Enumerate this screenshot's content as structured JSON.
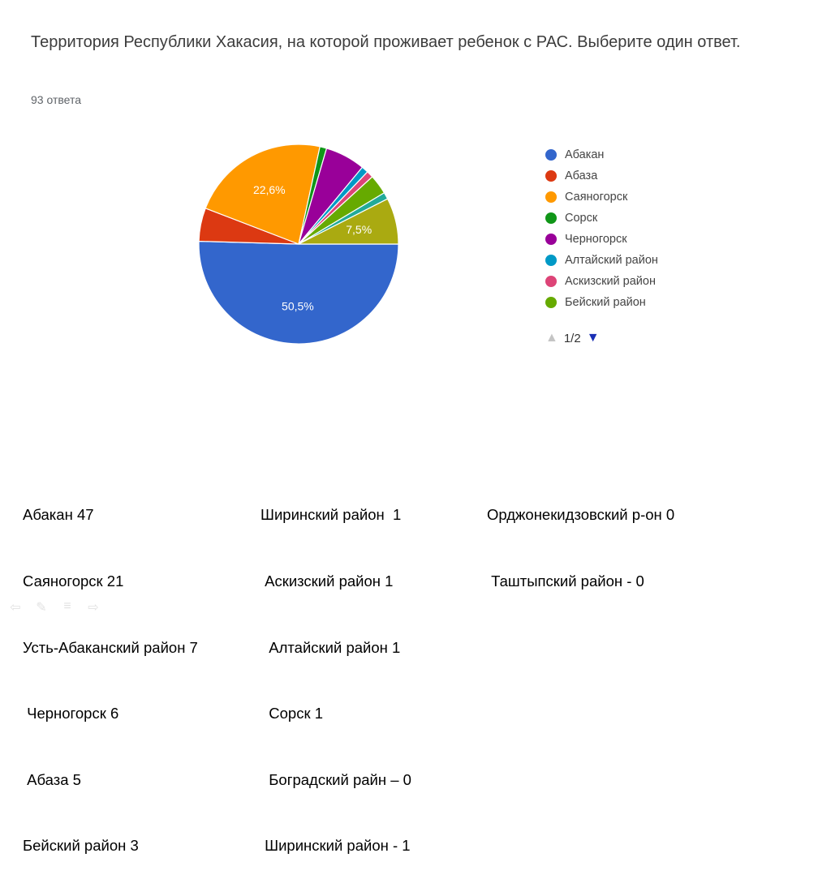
{
  "question": {
    "title": "Территория Республики Хакасия, на которой проживает ребенок с РАС. Выберите один ответ.",
    "response_count": "93 ответа"
  },
  "chart_data": {
    "type": "pie",
    "title": "Территория Республики Хакасия, на которой проживает ребенок с РАС. Выберите один ответ.",
    "slices": [
      {
        "label": "Абакан",
        "value": 50.5,
        "color": "#3366cc",
        "shown_label": "50,5%"
      },
      {
        "label": "Абаза",
        "value": 5.4,
        "color": "#dc3912",
        "shown_label": ""
      },
      {
        "label": "Саяногорск",
        "value": 22.6,
        "color": "#ff9900",
        "shown_label": "22,6%"
      },
      {
        "label": "Сорск",
        "value": 1.1,
        "color": "#109618",
        "shown_label": ""
      },
      {
        "label": "Черногорск",
        "value": 6.5,
        "color": "#990099",
        "shown_label": ""
      },
      {
        "label": "Алтайский район",
        "value": 1.1,
        "color": "#0099c6",
        "shown_label": ""
      },
      {
        "label": "Аскизский район",
        "value": 1.1,
        "color": "#dd4477",
        "shown_label": ""
      },
      {
        "label": "Бейский район",
        "value": 3.2,
        "color": "#66aa00",
        "shown_label": ""
      },
      {
        "label": "",
        "value": 1.1,
        "color": "#22aa99",
        "shown_label": ""
      },
      {
        "label": "",
        "value": 7.5,
        "color": "#aaaa11",
        "shown_label": "7,5%"
      }
    ],
    "legend_position": "right"
  },
  "legend": {
    "items": [
      {
        "label": "Абакан",
        "color": "#3366cc"
      },
      {
        "label": "Абаза",
        "color": "#dc3912"
      },
      {
        "label": "Саяногорск",
        "color": "#ff9900"
      },
      {
        "label": "Сорск",
        "color": "#109618"
      },
      {
        "label": "Черногорск",
        "color": "#990099"
      },
      {
        "label": "Алтайский район",
        "color": "#0099c6"
      },
      {
        "label": "Аскизский район",
        "color": "#dd4477"
      },
      {
        "label": "Бейский район",
        "color": "#66aa00"
      }
    ],
    "page_indicator": "1/2",
    "prev_icon": "▲",
    "next_icon": "▼"
  },
  "tallies": {
    "col1": [
      "Абакан 47",
      "Саяногорск 21",
      "Усть-Абаканский район 7",
      " Черногорск 6",
      " Абаза 5",
      "Бейский район 3"
    ],
    "col2": [
      "Ширинский район  1",
      " Аскизский район 1",
      "  Алтайский район 1",
      "  Сорск 1",
      "  Боградский райн – 0",
      " Ширинский район - 1"
    ],
    "col3": [
      "Орджонекидзовский р-он 0",
      " Таштыпский район - 0"
    ]
  },
  "navigation": {
    "back_icon": "⇦",
    "pen_icon": "✎",
    "menu_icon": "≡",
    "forward_icon": "⇨"
  }
}
